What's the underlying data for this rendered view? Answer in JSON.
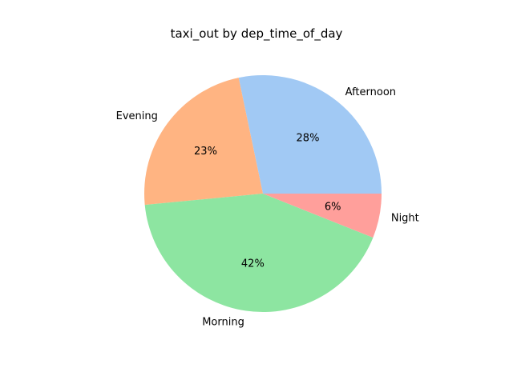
{
  "chart_data": {
    "type": "pie",
    "title": "taxi_out by dep_time_of_day",
    "start_angle": 0,
    "direction": "counterclockwise",
    "slices": [
      {
        "label": "Afternoon",
        "value": 28,
        "pct_label": "28%",
        "color": "#a1c9f4"
      },
      {
        "label": "Evening",
        "value": 23,
        "pct_label": "23%",
        "color": "#ffb482"
      },
      {
        "label": "Morning",
        "value": 42,
        "pct_label": "42%",
        "color": "#8de5a1"
      },
      {
        "label": "Night",
        "value": 6,
        "pct_label": "6%",
        "color": "#ff9f9b"
      }
    ]
  }
}
